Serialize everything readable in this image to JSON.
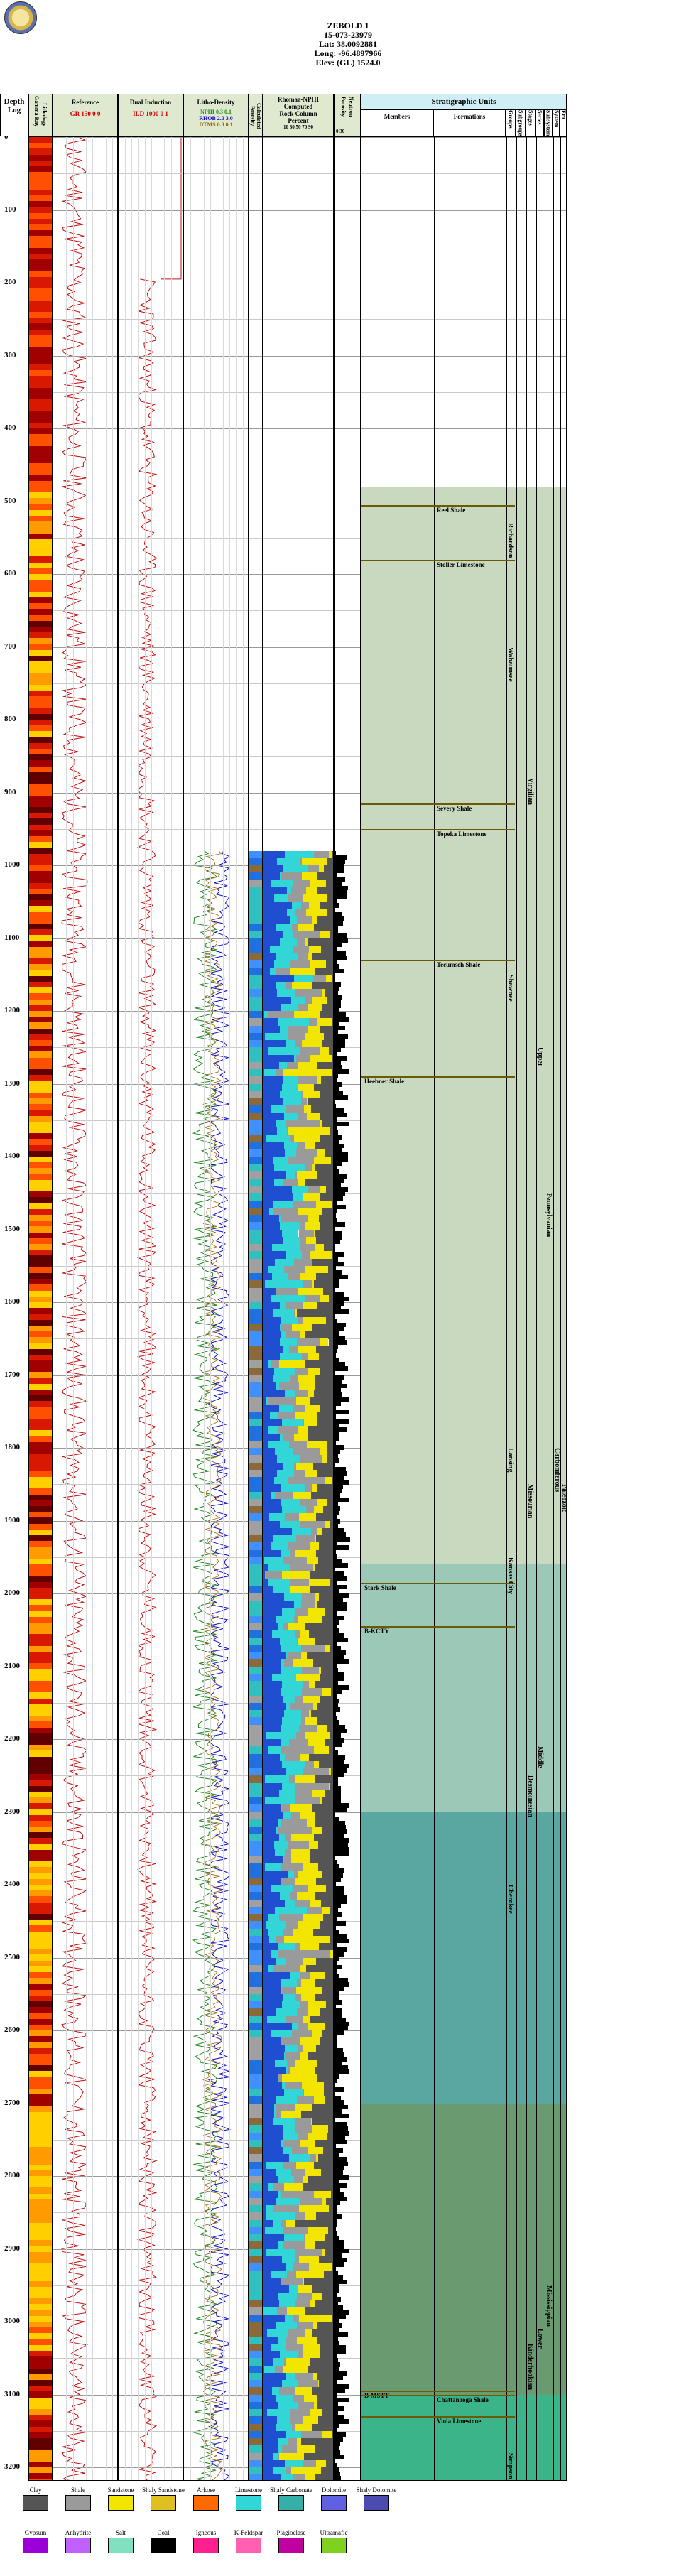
{
  "header": {
    "well": "ZEBOLD 1",
    "api": "15-073-23979",
    "lat": "Lat: 38.0092881",
    "long": "Long: -96.4897966",
    "elev": "Elev: (GL) 1524.0"
  },
  "columns": {
    "depth": "Depth",
    "log": "Log",
    "gamma_ray": "Gamma Ray",
    "lithology": "Lithology",
    "reference": "Reference",
    "dual_induction": "Dual Induction",
    "litho_density": "Litho-Density",
    "calc_porosity": "Calculated Porosity",
    "shale_pct": "Shaly Percent",
    "porosity": "Porosity",
    "neutron": "Neutron",
    "strat_units": "Stratigraphic Units",
    "members": "Members",
    "formations": "Formations",
    "groups": "Groups",
    "subgroups": "Subgroups",
    "stages": "Stages",
    "series": "Series",
    "subsystem": "Subsystem",
    "system": "System",
    "era": "Era"
  },
  "track_scales": {
    "gr_label": "GR",
    "gr_scale": "150  0  0",
    "ild_label": "ILD",
    "ild_scale": "1000  0  1",
    "nphi_label": "NPHI",
    "rhob_label": "RHOB",
    "dt_label": "DTMS",
    "nphi_scale": "0.3  0.1",
    "rhob_scale": "2.0  3.0",
    "rhos_scale": "0.3  0.1",
    "rock_title": "Rhomaa-NPHI",
    "rock_sub1": "Computed",
    "rock_sub2": "Rock Column",
    "rock_pct": "Percent",
    "rock_ticks": "10  30  50  70  90",
    "poro_ticks": "0   30"
  },
  "depths": [
    "0",
    "100",
    "200",
    "300",
    "400",
    "500",
    "600",
    "700",
    "800",
    "900",
    "1000",
    "1100",
    "1200",
    "1300",
    "1400",
    "1500",
    "1600",
    "1700",
    "1800",
    "1900",
    "2000",
    "2100",
    "2200",
    "2300",
    "2400",
    "2500",
    "2600",
    "2700",
    "2800",
    "2900",
    "3000",
    "3100",
    "3200"
  ],
  "strat_units": [
    {
      "name": "Reel Shale",
      "col": "formations",
      "depth": 505
    },
    {
      "name": "Stoller Limestone",
      "col": "formations",
      "depth": 580
    },
    {
      "name": "Severy Shale",
      "col": "formations",
      "depth": 915
    },
    {
      "name": "Topeka Limestone",
      "col": "formations",
      "depth": 950
    },
    {
      "name": "Tecumseh Shale",
      "col": "formations",
      "depth": 1130
    },
    {
      "name": "Heebner Shale",
      "col": "members",
      "depth": 1290
    },
    {
      "name": "Stark Shale",
      "col": "members",
      "depth": 1985
    },
    {
      "name": "B-KCTY",
      "col": "members",
      "depth": 2045
    },
    {
      "name": "B-MSTT",
      "col": "members",
      "depth": 3095
    },
    {
      "name": "Chattanooga Shale",
      "col": "formations",
      "depth": 3100
    },
    {
      "name": "Viola Limestone",
      "col": "formations",
      "depth": 3130
    }
  ],
  "group_labels": [
    {
      "name": "Richardson",
      "col": "groups",
      "depth": 530
    },
    {
      "name": "Wabaunsee",
      "col": "groups",
      "depth": 700
    },
    {
      "name": "Shawnee",
      "col": "groups",
      "depth": 1150
    },
    {
      "name": "Lansing",
      "col": "groups",
      "depth": 1800
    },
    {
      "name": "Kansas City",
      "col": "groups",
      "depth": 1950
    },
    {
      "name": "Cherokee",
      "col": "groups",
      "depth": 2400
    },
    {
      "name": "Simpson",
      "col": "groups",
      "depth": 3180
    },
    {
      "name": "Virgilian",
      "col": "stages",
      "depth": 880
    },
    {
      "name": "Missourian",
      "col": "stages",
      "depth": 1850
    },
    {
      "name": "Desmoinesian",
      "col": "stages",
      "depth": 2250
    },
    {
      "name": "Kinderhookian",
      "col": "stages",
      "depth": 3030
    },
    {
      "name": "Upper",
      "col": "series",
      "depth": 1250
    },
    {
      "name": "Middle",
      "col": "series",
      "depth": 2210
    },
    {
      "name": "Lower",
      "col": "series",
      "depth": 3010
    },
    {
      "name": "Pennsylvanian",
      "col": "subsystem",
      "depth": 1450
    },
    {
      "name": "Mississippian",
      "col": "subsystem",
      "depth": 2950
    },
    {
      "name": "Carboniferous",
      "col": "system",
      "depth": 1800
    },
    {
      "name": "Paleozoic",
      "col": "era",
      "depth": 1850
    }
  ],
  "legend": [
    {
      "name": "Clay",
      "color": "#555555"
    },
    {
      "name": "Shale",
      "color": "#9a9a9a"
    },
    {
      "name": "Sandstone",
      "color": "#f2e600"
    },
    {
      "name": "Shaly Sandstone",
      "color": "#e0c020"
    },
    {
      "name": "Arkose",
      "color": "#ff6a00"
    },
    {
      "name": "Limestone",
      "color": "#33d6d6"
    },
    {
      "name": "Shaly Carbonate",
      "color": "#35b0a8"
    },
    {
      "name": "Dolomite",
      "color": "#6060e0"
    },
    {
      "name": "Shaly Dolomite",
      "color": "#4b4bb0"
    },
    {
      "name": "Gypsum",
      "color": "#9b00d8"
    },
    {
      "name": "Anhydrite",
      "color": "#c060ff"
    },
    {
      "name": "Salt",
      "color": "#80e0c0"
    },
    {
      "name": "Coal",
      "color": "#000000"
    },
    {
      "name": "Igneous",
      "color": "#ff2090"
    },
    {
      "name": "K-Feldspar",
      "color": "#ff60b0"
    },
    {
      "name": "Plagioclase",
      "color": "#c000a0"
    },
    {
      "name": "Ultramafic",
      "color": "#80d020"
    }
  ]
}
